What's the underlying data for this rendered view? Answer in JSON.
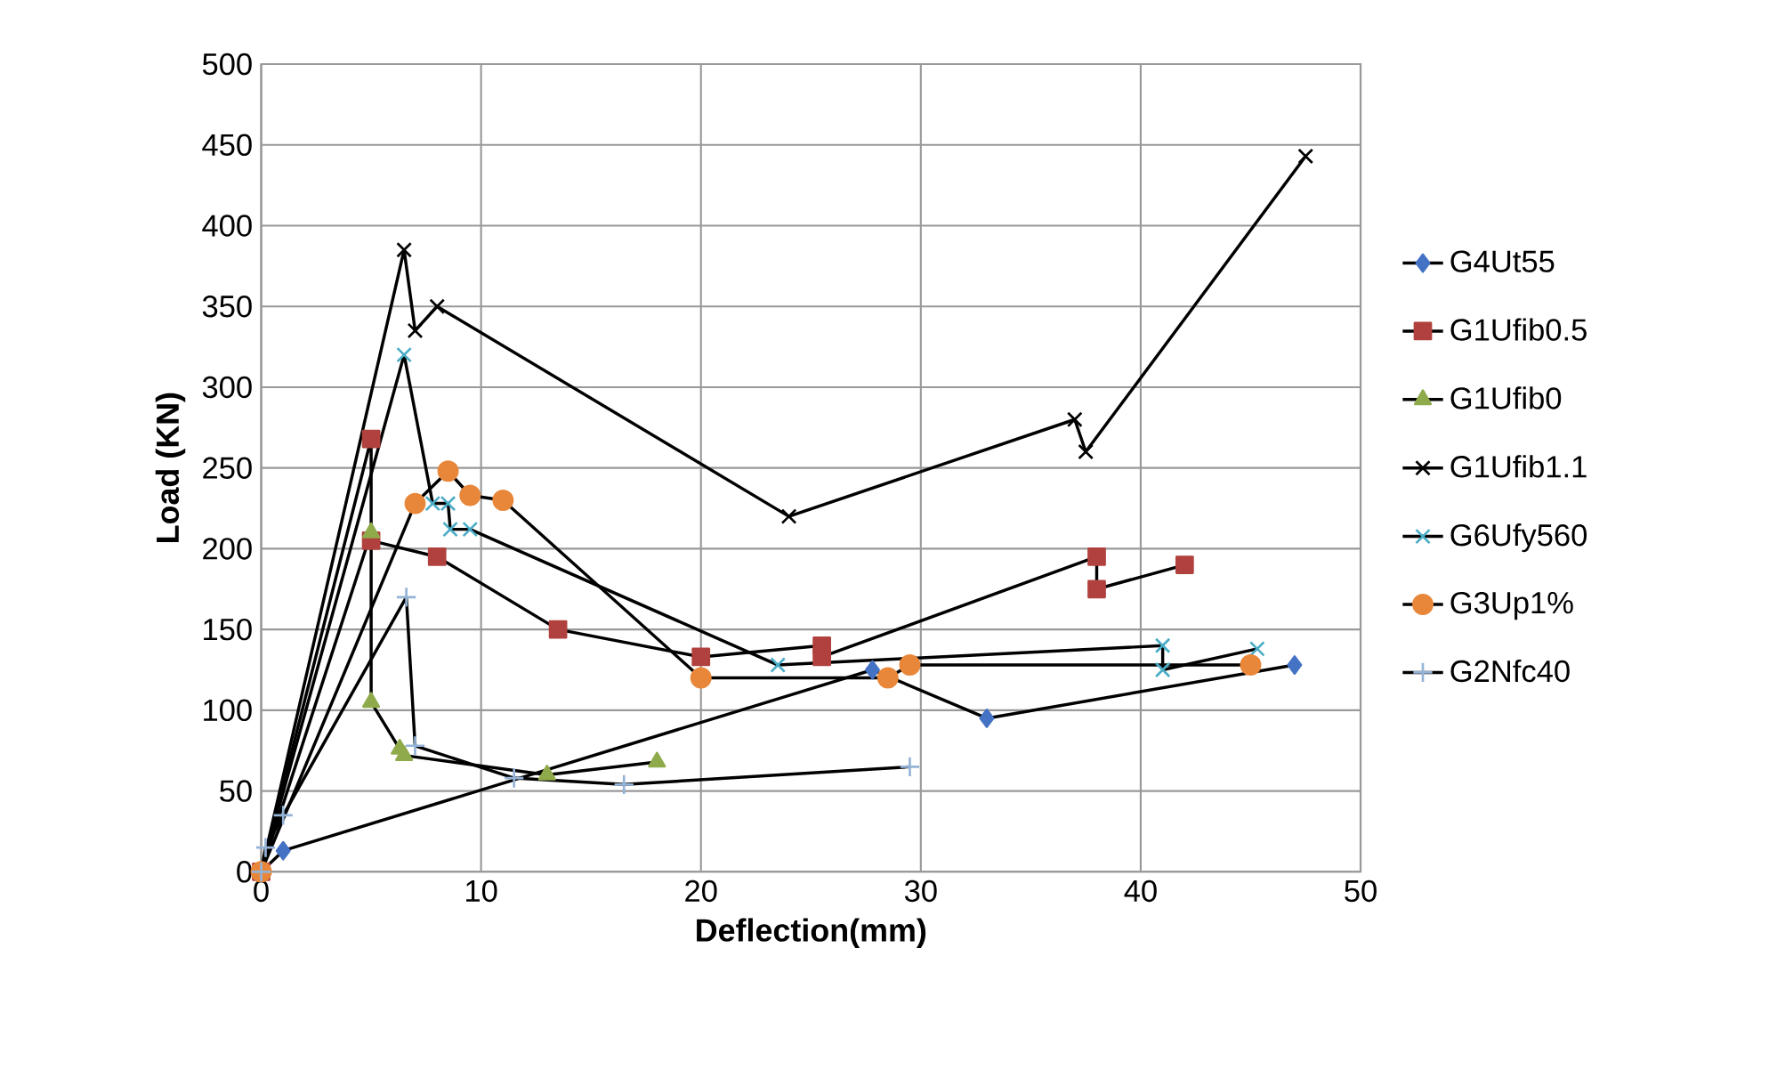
{
  "chart_data": {
    "type": "line",
    "xlabel": "Deflection(mm)",
    "ylabel": "Load (KN)",
    "xlim": [
      0,
      50
    ],
    "xticks": [
      0,
      10,
      20,
      30,
      40,
      50
    ],
    "ylim": [
      0,
      500
    ],
    "yticks": [
      0,
      50,
      100,
      150,
      200,
      250,
      300,
      350,
      400,
      450,
      500
    ],
    "grid": true,
    "legend": "right",
    "series": [
      {
        "name": "G4Ut55",
        "color": "#4472c4",
        "marker": "diamond",
        "x": [
          0,
          1,
          27.8,
          33,
          47
        ],
        "values": [
          0,
          13,
          125,
          95,
          128
        ]
      },
      {
        "name": "G1Ufib0.5",
        "color": "#b0413e",
        "marker": "square",
        "x": [
          0,
          5,
          5,
          8,
          13.5,
          20,
          25.5,
          25.5,
          38,
          38,
          42
        ],
        "values": [
          0,
          268,
          205,
          195,
          150,
          133,
          140,
          133,
          195,
          175,
          190
        ]
      },
      {
        "name": "G1Ufib0",
        "color": "#8faa4a",
        "marker": "triangle",
        "x": [
          0,
          5,
          5,
          6.3,
          6.5,
          13,
          18
        ],
        "values": [
          0,
          210,
          105,
          76,
          72,
          60,
          68
        ]
      },
      {
        "name": "G1Ufib1.1",
        "color": "#000000",
        "marker": "cross",
        "x": [
          0,
          6.5,
          7,
          8,
          24,
          37,
          37.5,
          47.5
        ],
        "values": [
          0,
          385,
          335,
          350,
          220,
          280,
          260,
          443
        ]
      },
      {
        "name": "G6Ufy560",
        "color": "#4aacc6",
        "marker": "cross",
        "x": [
          0,
          6.5,
          7.8,
          8.5,
          8.6,
          9.5,
          23.5,
          41,
          41,
          45.3
        ],
        "values": [
          0,
          320,
          228,
          228,
          212,
          212,
          128,
          140,
          125,
          138
        ]
      },
      {
        "name": "G3Up1%",
        "color": "#e8873a",
        "marker": "circle",
        "x": [
          0,
          7,
          8.5,
          9.5,
          11,
          20,
          28.5,
          29.5,
          45
        ],
        "values": [
          0,
          228,
          248,
          233,
          230,
          120,
          120,
          128,
          128
        ]
      },
      {
        "name": "G2Nfc40",
        "color": "#95b3d7",
        "marker": "plus",
        "x": [
          0,
          0.2,
          1,
          6.6,
          7,
          11.5,
          16.5,
          29.5
        ],
        "values": [
          0,
          15,
          35,
          170,
          78,
          58,
          54,
          65
        ]
      }
    ]
  }
}
